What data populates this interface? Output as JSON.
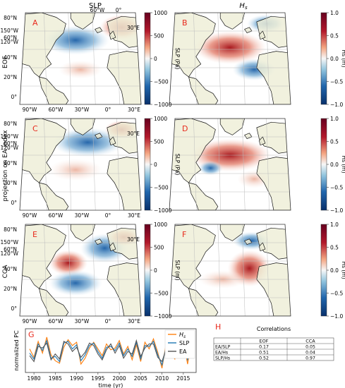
{
  "columns": {
    "slp": "SLP",
    "hs": "H<sub>s</sub>",
    "hs_plain": "Hs"
  },
  "rows": [
    {
      "label": "EOF",
      "slp_panel": "A",
      "hs_panel": "B"
    },
    {
      "label": "projection on EA index",
      "slp_panel": "C",
      "hs_panel": "D"
    },
    {
      "label": "CCA",
      "slp_panel": "E",
      "hs_panel": "F"
    }
  ],
  "lon_labels_top": [
    "60°W",
    "0°",
    "30°E"
  ],
  "lon_labels_bottom": [
    "90°W",
    "60°W",
    "30°W",
    "0°",
    "30°E"
  ],
  "lat_labels": [
    "80°N",
    "60°N",
    "40°N",
    "20°N",
    "0°"
  ],
  "lon_labels_left": [
    "150°W",
    "120°W"
  ],
  "slp_colorbar": {
    "ticks": [
      "1000",
      "500",
      "0",
      "−500",
      "−1000"
    ]
  },
  "slp_colorbar_labels": [
    "SLP (Pa)",
    "SLP (Pa)",
    "SLP (m)"
  ],
  "hs_colorbar": {
    "ticks": [
      "1.0",
      "0.5",
      "0.0",
      "−0.5",
      "−1.0"
    ],
    "label": "Hs (m)"
  },
  "colors": {
    "pos": "#b2182b",
    "neg": "#2166ac",
    "land": "#eeeed8",
    "ocean": "#ffffff",
    "series_hs": "#ff7f0e",
    "series_slp": "#1f77b4",
    "series_ea": "#555555",
    "panel_letter": "#e8291c"
  },
  "chart_data": {
    "type": "line",
    "panel": "G",
    "ylabel": "normalized PC",
    "xlabel": "time (yr)",
    "xlim": [
      1978,
      2018
    ],
    "ylim": [
      -2.6,
      2.6
    ],
    "xticks": [
      1980,
      1985,
      1990,
      1995,
      2000,
      2005,
      2010,
      2015
    ],
    "x": [
      1979,
      1980,
      1981,
      1982,
      1983,
      1984,
      1985,
      1986,
      1987,
      1988,
      1989,
      1990,
      1991,
      1992,
      1993,
      1994,
      1995,
      1996,
      1997,
      1998,
      1999,
      2000,
      2001,
      2002,
      2003,
      2004,
      2005,
      2006,
      2007,
      2008,
      2009,
      2010,
      2011,
      2012,
      2013,
      2014,
      2015,
      2016,
      2017
    ],
    "series": [
      {
        "name": "H<sub>s</sub>",
        "values": [
          0.2,
          -0.8,
          1.1,
          -0.3,
          1.6,
          -0.5,
          -1.2,
          -1.5,
          0.4,
          1.3,
          0.6,
          1.0,
          -1.6,
          -0.9,
          0.3,
          1.0,
          0.2,
          -0.6,
          0.8,
          0.1,
          0.3,
          1.2,
          -0.4,
          0.5,
          -1.1,
          0.7,
          -1.3,
          1.0,
          0.2,
          1.4,
          -0.2,
          -2.1,
          0.9,
          -0.3,
          -1.0,
          1.8,
          1.1,
          -1.6,
          1.5
        ]
      },
      {
        "name": "SLP",
        "values": [
          -0.3,
          -1.0,
          0.8,
          0.0,
          1.2,
          -0.9,
          -0.7,
          -1.3,
          0.9,
          1.1,
          0.2,
          0.7,
          -1.2,
          -0.5,
          0.6,
          0.9,
          -0.1,
          -0.9,
          0.4,
          0.5,
          0.0,
          0.9,
          -0.6,
          0.2,
          -0.7,
          1.0,
          -1.0,
          0.6,
          0.5,
          1.1,
          -0.5,
          -1.7,
          0.5,
          0.1,
          -0.6,
          1.3,
          0.7,
          -1.1,
          1.0
        ]
      },
      {
        "name": "EA",
        "values": [
          -0.6,
          -1.3,
          0.5,
          0.3,
          0.9,
          -1.1,
          -0.4,
          -1.0,
          1.1,
          0.8,
          -0.1,
          0.4,
          -0.8,
          -0.2,
          0.9,
          0.6,
          -0.4,
          -1.1,
          0.1,
          0.8,
          -0.3,
          0.6,
          -0.9,
          -0.1,
          -0.4,
          1.2,
          -0.7,
          0.3,
          0.8,
          0.8,
          -0.8,
          -1.3,
          0.2,
          0.4,
          -0.3,
          1.0,
          0.4,
          -0.7,
          0.7
        ]
      }
    ]
  },
  "correlations": {
    "panel": "H",
    "title": "Correlations",
    "headers": [
      "EOF",
      "CCA"
    ],
    "rows": [
      {
        "label": "EA/SLP",
        "eof": "0.17",
        "cca": "0.05"
      },
      {
        "label": "EA/Hs",
        "eof": "0.51",
        "cca": "0.04"
      },
      {
        "label": "SLP/Hs",
        "eof": "0.52",
        "cca": "0.97"
      }
    ]
  }
}
